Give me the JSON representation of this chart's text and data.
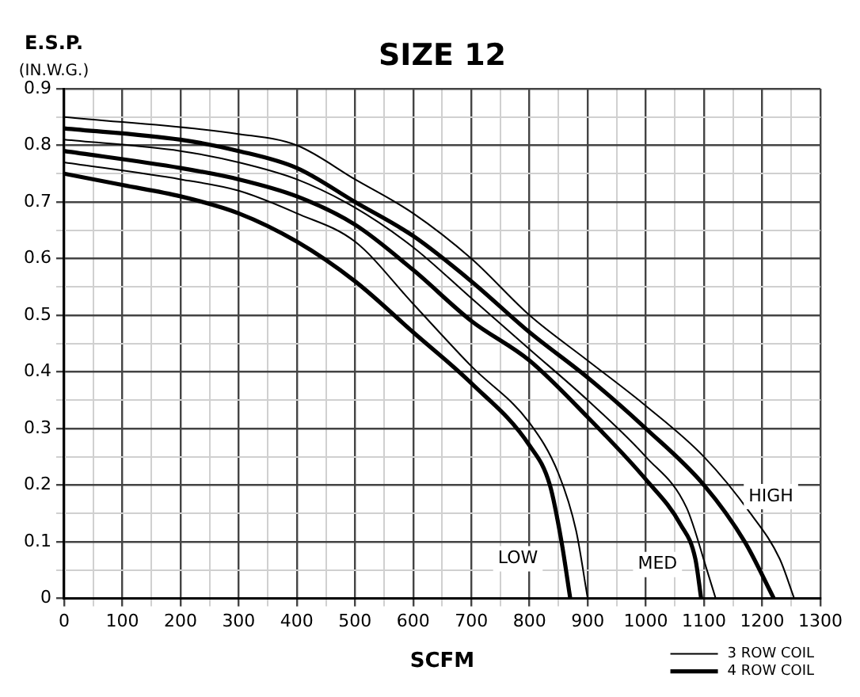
{
  "chart_data": {
    "type": "line",
    "title": "SIZE 12",
    "xlabel": "SCFM",
    "ylabel": "E.S.P.\n(IN.W.G.)",
    "xlim": [
      0,
      1300
    ],
    "ylim": [
      0,
      0.9
    ],
    "xticks": [
      0,
      {
        "value": 50,
        "label": null
      },
      100,
      {
        "value": 150,
        "label": null
      },
      200,
      {
        "value": 250,
        "label": null
      },
      300,
      {
        "value": 350,
        "label": null
      },
      400,
      {
        "value": 450,
        "label": null
      },
      500,
      {
        "value": 550,
        "label": null
      },
      600,
      {
        "value": 650,
        "label": null
      },
      700,
      {
        "value": 750,
        "label": null
      },
      800,
      {
        "value": 850,
        "label": null
      },
      900,
      {
        "value": 950,
        "label": null
      },
      1000,
      {
        "value": 1050,
        "label": null
      },
      1100,
      {
        "value": 1150,
        "label": null
      },
      1200,
      {
        "value": 1250,
        "label": null
      },
      1300
    ],
    "yticks": [
      0,
      {
        "value": 0.05,
        "label": null
      },
      0.1,
      {
        "value": 0.15,
        "label": null
      },
      0.2,
      {
        "value": 0.25,
        "label": null
      },
      0.3,
      {
        "value": 0.35,
        "label": null
      },
      0.4,
      {
        "value": 0.45,
        "label": null
      },
      0.5,
      {
        "value": 0.55,
        "label": null
      },
      0.6,
      {
        "value": 0.65,
        "label": null
      },
      0.7,
      {
        "value": 0.75,
        "label": null
      },
      0.8,
      {
        "value": 0.85,
        "label": null
      },
      0.9
    ],
    "grid": true,
    "legend": "bottom right",
    "marker": "none",
    "line_style": "solid",
    "annotations": [
      {
        "text": "LOW",
        "x": 780,
        "y": 0.07
      },
      {
        "text": "MED",
        "x": 1020,
        "y": 0.06
      },
      {
        "text": "HIGH",
        "x": 1215,
        "y": 0.18
      }
    ],
    "series": [
      {
        "name": "3 ROW COIL",
        "color": "#000000",
        "x": [
          0,
          200,
          300,
          400,
          500,
          600,
          700,
          800,
          850,
          880,
          900
        ],
        "values": [
          0.77,
          0.74,
          0.72,
          0.68,
          0.63,
          0.52,
          0.41,
          0.31,
          0.22,
          0.12,
          0
        ]
      },
      {
        "name": "4 ROW COIL",
        "color": "#000000",
        "x": [
          0,
          100,
          200,
          300,
          400,
          500,
          600,
          700,
          800,
          835,
          855,
          870
        ],
        "values": [
          0.75,
          0.73,
          0.71,
          0.68,
          0.63,
          0.56,
          0.47,
          0.38,
          0.27,
          0.2,
          0.1,
          0
        ]
      },
      {
        "color": "#000000",
        "x": [
          0,
          200,
          300,
          400,
          500,
          600,
          700,
          800,
          900,
          1000,
          1070,
          1105,
          1120
        ],
        "values": [
          0.81,
          0.79,
          0.77,
          0.74,
          0.69,
          0.62,
          0.53,
          0.44,
          0.35,
          0.25,
          0.16,
          0.05,
          0
        ]
      },
      {
        "color": "#000000",
        "x": [
          0,
          200,
          300,
          400,
          500,
          600,
          700,
          800,
          900,
          1000,
          1060,
          1085,
          1095
        ],
        "values": [
          0.79,
          0.76,
          0.74,
          0.71,
          0.66,
          0.58,
          0.49,
          0.42,
          0.32,
          0.21,
          0.13,
          0.07,
          0
        ]
      },
      {
        "color": "#000000",
        "x": [
          0,
          300,
          400,
          500,
          600,
          700,
          800,
          900,
          1000,
          1100,
          1180,
          1230,
          1255
        ],
        "values": [
          0.85,
          0.82,
          0.8,
          0.74,
          0.68,
          0.6,
          0.5,
          0.42,
          0.34,
          0.25,
          0.15,
          0.07,
          0
        ]
      },
      {
        "color": "#000000",
        "x": [
          0,
          200,
          300,
          400,
          500,
          600,
          700,
          800,
          900,
          1000,
          1100,
          1170,
          1220
        ],
        "values": [
          0.83,
          0.81,
          0.79,
          0.76,
          0.7,
          0.64,
          0.56,
          0.47,
          0.39,
          0.3,
          0.2,
          0.1,
          0
        ]
      }
    ]
  }
}
